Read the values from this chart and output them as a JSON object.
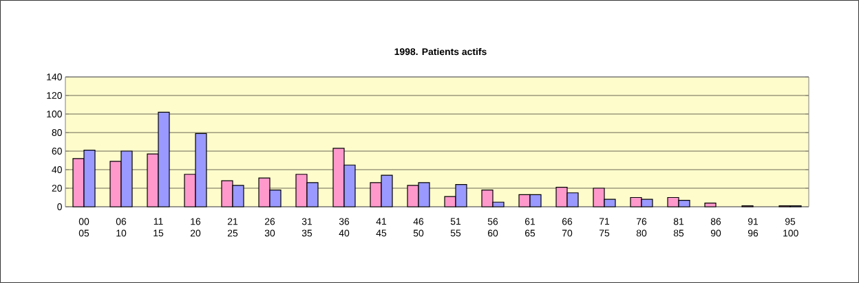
{
  "chart_data": {
    "type": "bar",
    "title": "1998. Patients actifs",
    "categories": [
      "00 05",
      "06 10",
      "11 15",
      "16 20",
      "21 25",
      "26 30",
      "31 35",
      "36 40",
      "41 45",
      "46 50",
      "51 55",
      "56 60",
      "61 65",
      "66 70",
      "71 75",
      "76 80",
      "81 85",
      "86 90",
      "91 96",
      "95 100"
    ],
    "series": [
      {
        "color": "#ff99cc",
        "values": [
          52,
          49,
          57,
          35,
          28,
          31,
          35,
          63,
          26,
          23,
          11,
          18,
          13,
          21,
          20,
          10,
          10,
          4,
          1,
          1
        ]
      },
      {
        "color": "#9999ff",
        "values": [
          61,
          60,
          102,
          79,
          23,
          18,
          26,
          45,
          34,
          26,
          24,
          5,
          13,
          15,
          8,
          8,
          7,
          null,
          null,
          1
        ]
      }
    ],
    "ylim": [
      0,
      140
    ],
    "yticks": [
      0,
      20,
      40,
      60,
      80,
      100,
      120,
      140
    ],
    "grid": "y"
  }
}
